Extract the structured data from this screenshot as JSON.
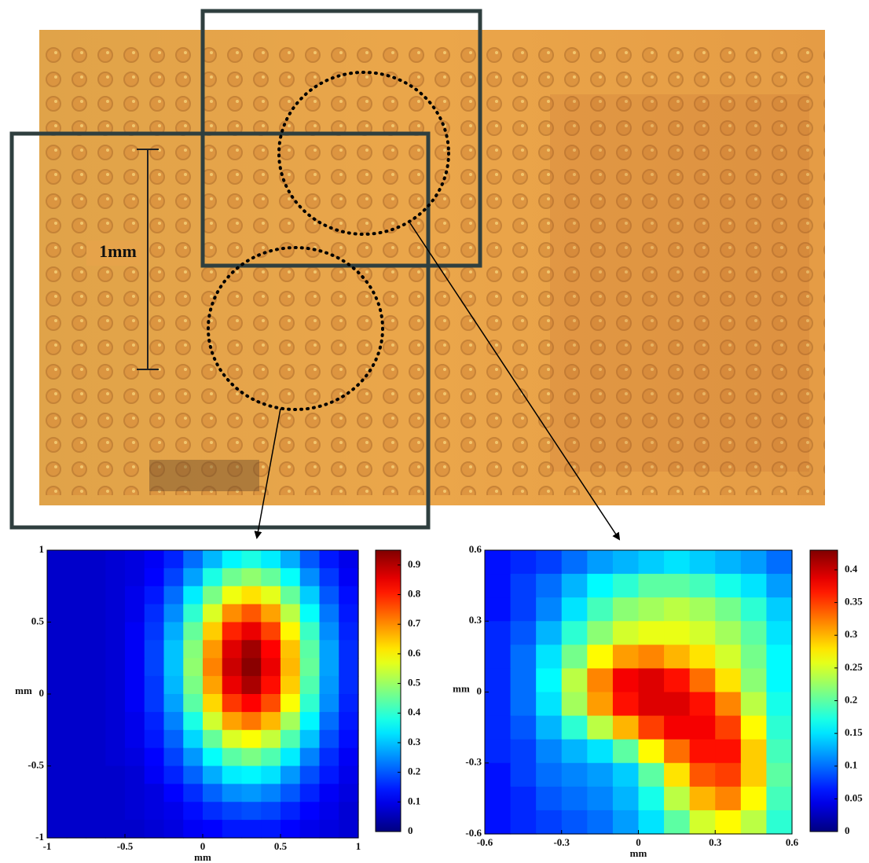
{
  "photo": {
    "scale_label": "1mm"
  },
  "chart_data": [
    {
      "type": "heatmap",
      "x_label": "mm",
      "y_label": "mm",
      "colormap": "jet",
      "xlim": [
        -1,
        1
      ],
      "ylim": [
        -1,
        1
      ],
      "xticks": [
        -1,
        -0.5,
        0,
        0.5,
        1
      ],
      "yticks": [
        -1,
        -0.5,
        0,
        0.5,
        1
      ],
      "clim": [
        0,
        0.95
      ],
      "cticks": [
        0,
        0.1,
        0.2,
        0.3,
        0.4,
        0.5,
        0.6,
        0.7,
        0.8,
        0.9
      ],
      "z": [
        [
          0.07,
          0.07,
          0.07,
          0.08,
          0.09,
          0.11,
          0.15,
          0.22,
          0.29,
          0.35,
          0.38,
          0.34,
          0.28,
          0.2,
          0.14,
          0.1
        ],
        [
          0.07,
          0.07,
          0.07,
          0.08,
          0.09,
          0.12,
          0.18,
          0.27,
          0.38,
          0.46,
          0.49,
          0.45,
          0.36,
          0.25,
          0.17,
          0.11
        ],
        [
          0.07,
          0.07,
          0.07,
          0.08,
          0.1,
          0.14,
          0.22,
          0.34,
          0.47,
          0.58,
          0.62,
          0.57,
          0.45,
          0.31,
          0.2,
          0.13
        ],
        [
          0.07,
          0.07,
          0.07,
          0.08,
          0.1,
          0.16,
          0.25,
          0.4,
          0.56,
          0.7,
          0.75,
          0.68,
          0.53,
          0.36,
          0.23,
          0.14
        ],
        [
          0.07,
          0.07,
          0.07,
          0.08,
          0.11,
          0.17,
          0.28,
          0.45,
          0.64,
          0.8,
          0.85,
          0.77,
          0.6,
          0.41,
          0.25,
          0.15
        ],
        [
          0.07,
          0.07,
          0.07,
          0.08,
          0.11,
          0.18,
          0.3,
          0.48,
          0.69,
          0.86,
          0.92,
          0.83,
          0.65,
          0.44,
          0.27,
          0.16
        ],
        [
          0.07,
          0.07,
          0.07,
          0.08,
          0.11,
          0.18,
          0.3,
          0.49,
          0.71,
          0.88,
          0.94,
          0.85,
          0.66,
          0.45,
          0.27,
          0.16
        ],
        [
          0.07,
          0.07,
          0.07,
          0.08,
          0.11,
          0.17,
          0.29,
          0.47,
          0.68,
          0.85,
          0.91,
          0.82,
          0.64,
          0.43,
          0.26,
          0.16
        ],
        [
          0.07,
          0.07,
          0.07,
          0.08,
          0.11,
          0.17,
          0.27,
          0.44,
          0.63,
          0.78,
          0.83,
          0.76,
          0.59,
          0.4,
          0.25,
          0.15
        ],
        [
          0.07,
          0.07,
          0.07,
          0.08,
          0.1,
          0.15,
          0.24,
          0.38,
          0.55,
          0.68,
          0.72,
          0.66,
          0.51,
          0.35,
          0.22,
          0.14
        ],
        [
          0.07,
          0.07,
          0.07,
          0.08,
          0.1,
          0.14,
          0.21,
          0.32,
          0.45,
          0.56,
          0.59,
          0.54,
          0.43,
          0.3,
          0.19,
          0.13
        ],
        [
          0.07,
          0.07,
          0.07,
          0.08,
          0.09,
          0.12,
          0.18,
          0.26,
          0.36,
          0.44,
          0.47,
          0.43,
          0.34,
          0.24,
          0.16,
          0.11
        ],
        [
          0.07,
          0.07,
          0.07,
          0.07,
          0.08,
          0.11,
          0.15,
          0.21,
          0.28,
          0.34,
          0.35,
          0.33,
          0.26,
          0.19,
          0.14,
          0.1
        ],
        [
          0.07,
          0.07,
          0.07,
          0.07,
          0.08,
          0.09,
          0.12,
          0.16,
          0.21,
          0.25,
          0.26,
          0.24,
          0.2,
          0.15,
          0.11,
          0.09
        ],
        [
          0.07,
          0.07,
          0.07,
          0.07,
          0.08,
          0.09,
          0.1,
          0.13,
          0.16,
          0.18,
          0.19,
          0.18,
          0.15,
          0.12,
          0.1,
          0.08
        ],
        [
          0.07,
          0.07,
          0.07,
          0.07,
          0.07,
          0.08,
          0.09,
          0.11,
          0.12,
          0.14,
          0.14,
          0.14,
          0.12,
          0.1,
          0.09,
          0.08
        ]
      ]
    },
    {
      "type": "heatmap",
      "x_label": "mm",
      "y_label": "mm",
      "colormap": "jet",
      "xlim": [
        -0.6,
        0.6
      ],
      "ylim": [
        -0.6,
        0.6
      ],
      "xticks": [
        -0.6,
        -0.3,
        0,
        0.3,
        0.6
      ],
      "yticks": [
        -0.6,
        -0.3,
        0,
        0.3,
        0.6
      ],
      "clim": [
        0,
        0.43
      ],
      "cticks": [
        0,
        0.05,
        0.1,
        0.15,
        0.2,
        0.25,
        0.3,
        0.35,
        0.4
      ],
      "z": [
        [
          0.06,
          0.07,
          0.08,
          0.1,
          0.12,
          0.13,
          0.14,
          0.15,
          0.14,
          0.13,
          0.12,
          0.1
        ],
        [
          0.06,
          0.08,
          0.1,
          0.13,
          0.16,
          0.18,
          0.2,
          0.2,
          0.19,
          0.17,
          0.15,
          0.12
        ],
        [
          0.06,
          0.08,
          0.11,
          0.15,
          0.19,
          0.22,
          0.23,
          0.24,
          0.23,
          0.21,
          0.18,
          0.14
        ],
        [
          0.07,
          0.09,
          0.13,
          0.18,
          0.22,
          0.25,
          0.26,
          0.26,
          0.25,
          0.23,
          0.2,
          0.15
        ],
        [
          0.07,
          0.1,
          0.15,
          0.21,
          0.27,
          0.31,
          0.32,
          0.3,
          0.28,
          0.25,
          0.21,
          0.16
        ],
        [
          0.07,
          0.1,
          0.16,
          0.24,
          0.32,
          0.38,
          0.39,
          0.37,
          0.33,
          0.28,
          0.22,
          0.16
        ],
        [
          0.07,
          0.1,
          0.15,
          0.23,
          0.31,
          0.37,
          0.39,
          0.39,
          0.37,
          0.32,
          0.24,
          0.17
        ],
        [
          0.07,
          0.09,
          0.13,
          0.18,
          0.24,
          0.3,
          0.35,
          0.38,
          0.38,
          0.35,
          0.27,
          0.18
        ],
        [
          0.07,
          0.08,
          0.11,
          0.13,
          0.15,
          0.2,
          0.27,
          0.33,
          0.37,
          0.37,
          0.29,
          0.19
        ],
        [
          0.06,
          0.08,
          0.1,
          0.11,
          0.12,
          0.14,
          0.2,
          0.28,
          0.34,
          0.35,
          0.29,
          0.2
        ],
        [
          0.06,
          0.07,
          0.09,
          0.1,
          0.11,
          0.13,
          0.17,
          0.24,
          0.3,
          0.32,
          0.27,
          0.19
        ],
        [
          0.06,
          0.07,
          0.08,
          0.09,
          0.1,
          0.12,
          0.15,
          0.2,
          0.25,
          0.27,
          0.24,
          0.18
        ]
      ]
    }
  ]
}
